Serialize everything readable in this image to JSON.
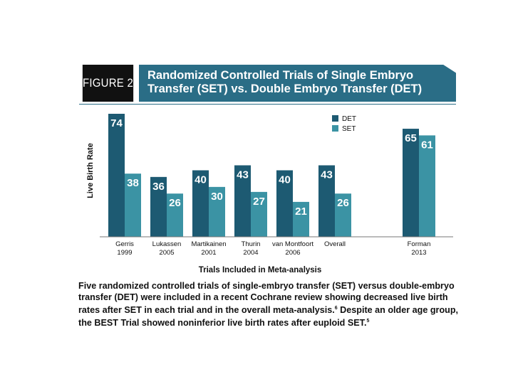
{
  "figure": {
    "label": "FIGURE 2",
    "title_line1": "Randomized Controlled Trials of Single Embryo",
    "title_line2": "Transfer (SET) vs. Double Embryo Transfer (DET)"
  },
  "caption": {
    "text": "Five randomized controlled trials of single-embryo transfer (SET) versus double-embryo transfer (DET) were included in a recent Cochrane review showing decreased live birth rates after SET in each trial and in the overall meta-analysis.",
    "ref1": "6",
    "text2": " Despite an older age group, the BEST Trial showed noninferior live birth rates after euploid SET.",
    "ref2": "5"
  },
  "colors": {
    "det": "#1d5a72",
    "set": "#3b93a4",
    "header": "#2a6d86"
  },
  "chart_data": {
    "type": "bar",
    "xlabel": "Trials Included in Meta-analysis",
    "ylabel": "Live Birth Rate",
    "ylim": [
      0,
      80
    ],
    "grid": false,
    "legend_position": "top-right",
    "categories": [
      [
        "Gerris",
        "1999"
      ],
      [
        "Lukassen",
        "2005"
      ],
      [
        "Martikainen",
        "2001"
      ],
      [
        "Thurin",
        "2004"
      ],
      [
        "van Montfoort",
        "2006"
      ],
      [
        "Overall",
        ""
      ],
      [
        "Forman",
        "2013"
      ]
    ],
    "series": [
      {
        "name": "DET",
        "values": [
          74,
          36,
          40,
          43,
          40,
          43,
          65
        ]
      },
      {
        "name": "SET",
        "values": [
          38,
          26,
          30,
          27,
          21,
          26,
          61
        ]
      }
    ]
  }
}
